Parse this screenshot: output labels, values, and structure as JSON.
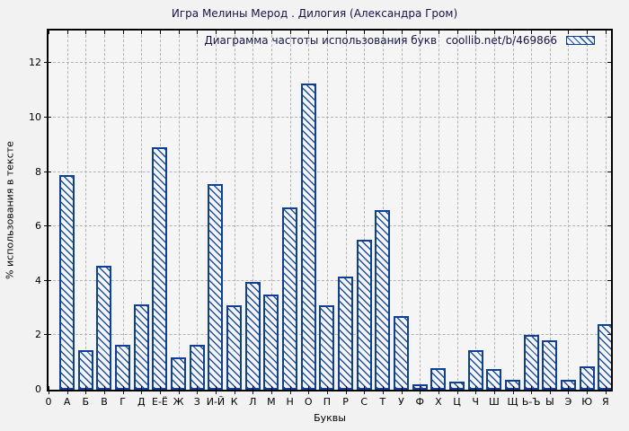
{
  "title": "Игра Мелины Мерод . Дилогия (Александра Гром)",
  "legend": {
    "label": "Диаграмма частоты использования букв",
    "source": "coollib.net/b/469866"
  },
  "axes": {
    "x_title": "Буквы",
    "y_title": "% использования в тексте",
    "origin_label": "0",
    "y_ticks": [
      0,
      2,
      4,
      6,
      8,
      10,
      12
    ]
  },
  "colors": {
    "background": "#f2f2f2",
    "plot_background": "#f5f5f5",
    "bar_border": "#0d3f9e",
    "bar_hatch": "#1d4fa8",
    "grid": "#b4b4b4",
    "axis": "#000000",
    "heading_text": "#14144a"
  },
  "chart_data": {
    "type": "bar",
    "title": "Игра Мелины Мерод . Дилогия (Александра Гром)",
    "legend_label": "Диаграмма частоты использования букв coollib.net/b/469866",
    "legend_position": "top-right",
    "xlabel": "Буквы",
    "ylabel": "% использования в тексте",
    "ylim": [
      0,
      13.2
    ],
    "y_tick_step": 2,
    "grid": true,
    "bar_style": "blue diagonal hatch",
    "categories": [
      "А",
      "Б",
      "В",
      "Г",
      "Д",
      "Е-Ё",
      "Ж",
      "З",
      "И-Й",
      "К",
      "Л",
      "М",
      "Н",
      "О",
      "П",
      "Р",
      "С",
      "Т",
      "У",
      "Ф",
      "Х",
      "Ц",
      "Ч",
      "Ш",
      "Щ",
      "Ь-Ъ",
      "Ы",
      "Э",
      "Ю",
      "Я"
    ],
    "values": [
      7.9,
      1.45,
      4.55,
      1.65,
      3.15,
      8.9,
      1.2,
      1.65,
      7.55,
      3.1,
      3.95,
      3.5,
      6.7,
      11.25,
      3.1,
      4.15,
      5.5,
      6.6,
      2.7,
      0.2,
      0.8,
      0.3,
      1.45,
      0.75,
      0.35,
      2.0,
      1.8,
      0.35,
      0.85,
      2.4
    ]
  }
}
